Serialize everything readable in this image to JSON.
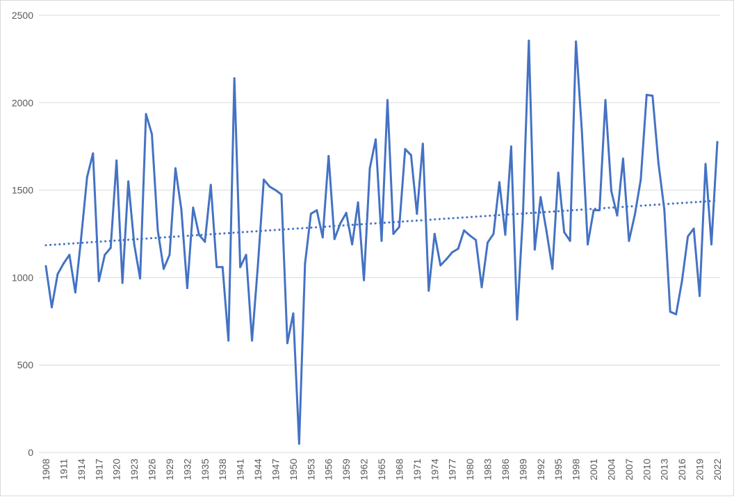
{
  "chart_data": {
    "type": "line",
    "title": "",
    "xlabel": "",
    "ylabel": "",
    "ylim": [
      0,
      2500
    ],
    "yticks": [
      0,
      500,
      1000,
      1500,
      2000,
      2500
    ],
    "grid": "horizontal",
    "legend": "none",
    "x_tick_labels": [
      "1908",
      "1911",
      "1914",
      "1917",
      "1920",
      "1923",
      "1926",
      "1929",
      "1932",
      "1935",
      "1938",
      "1941",
      "1944",
      "1947",
      "1950",
      "1953",
      "1956",
      "1959",
      "1962",
      "1965",
      "1968",
      "1971",
      "1974",
      "1977",
      "1980",
      "1983",
      "1986",
      "1989",
      "1992",
      "1995",
      "1998",
      "2001",
      "2004",
      "2007",
      "2010",
      "2013",
      "2016",
      "2019",
      "2022"
    ],
    "x": [
      1908,
      1909,
      1910,
      1911,
      1912,
      1913,
      1914,
      1915,
      1916,
      1917,
      1918,
      1919,
      1920,
      1921,
      1922,
      1923,
      1924,
      1925,
      1926,
      1927,
      1928,
      1929,
      1930,
      1931,
      1932,
      1933,
      1934,
      1935,
      1936,
      1937,
      1938,
      1939,
      1940,
      1941,
      1942,
      1943,
      1944,
      1945,
      1946,
      1947,
      1948,
      1949,
      1950,
      1951,
      1952,
      1953,
      1954,
      1955,
      1956,
      1957,
      1958,
      1959,
      1960,
      1961,
      1962,
      1963,
      1964,
      1965,
      1966,
      1967,
      1968,
      1969,
      1970,
      1971,
      1972,
      1973,
      1974,
      1975,
      1976,
      1977,
      1978,
      1979,
      1980,
      1981,
      1982,
      1983,
      1984,
      1985,
      1986,
      1987,
      1988,
      1989,
      1990,
      1991,
      1992,
      1993,
      1994,
      1995,
      1996,
      1997,
      1998,
      1999,
      2000,
      2001,
      2002,
      2003,
      2004,
      2005,
      2006,
      2007,
      2008,
      2009,
      2010,
      2011,
      2012,
      2013,
      2014,
      2015,
      2016,
      2017,
      2018,
      2019,
      2020,
      2021,
      2022
    ],
    "series": [
      {
        "kind": "line",
        "values": [
          1065,
          830,
          1020,
          1080,
          1130,
          915,
          1230,
          1575,
          1710,
          980,
          1130,
          1170,
          1670,
          970,
          1550,
          1190,
          995,
          1935,
          1820,
          1270,
          1050,
          1130,
          1625,
          1390,
          940,
          1400,
          1245,
          1205,
          1530,
          1060,
          1060,
          640,
          2140,
          1060,
          1130,
          640,
          1070,
          1560,
          1520,
          1500,
          1475,
          625,
          795,
          50,
          1080,
          1365,
          1385,
          1230,
          1695,
          1220,
          1310,
          1370,
          1190,
          1430,
          985,
          1625,
          1790,
          1210,
          2015,
          1250,
          1290,
          1735,
          1700,
          1365,
          1765,
          925,
          1250,
          1070,
          1105,
          1145,
          1165,
          1270,
          1240,
          1215,
          945,
          1200,
          1250,
          1545,
          1245,
          1750,
          760,
          1360,
          2355,
          1160,
          1460,
          1265,
          1050,
          1600,
          1260,
          1210,
          2350,
          1840,
          1190,
          1385,
          1385,
          2015,
          1495,
          1355,
          1680,
          1210,
          1360,
          1560,
          2045,
          2040,
          1655,
          1390,
          805,
          790,
          980,
          1235,
          1280,
          895,
          1650,
          1190,
          1775
        ],
        "color": "#4472c4",
        "style": "solid"
      },
      {
        "kind": "linear trendline",
        "start": [
          1908,
          1185
        ],
        "end": [
          2022,
          1440
        ],
        "color": "#4472c4",
        "style": "dotted"
      }
    ]
  }
}
